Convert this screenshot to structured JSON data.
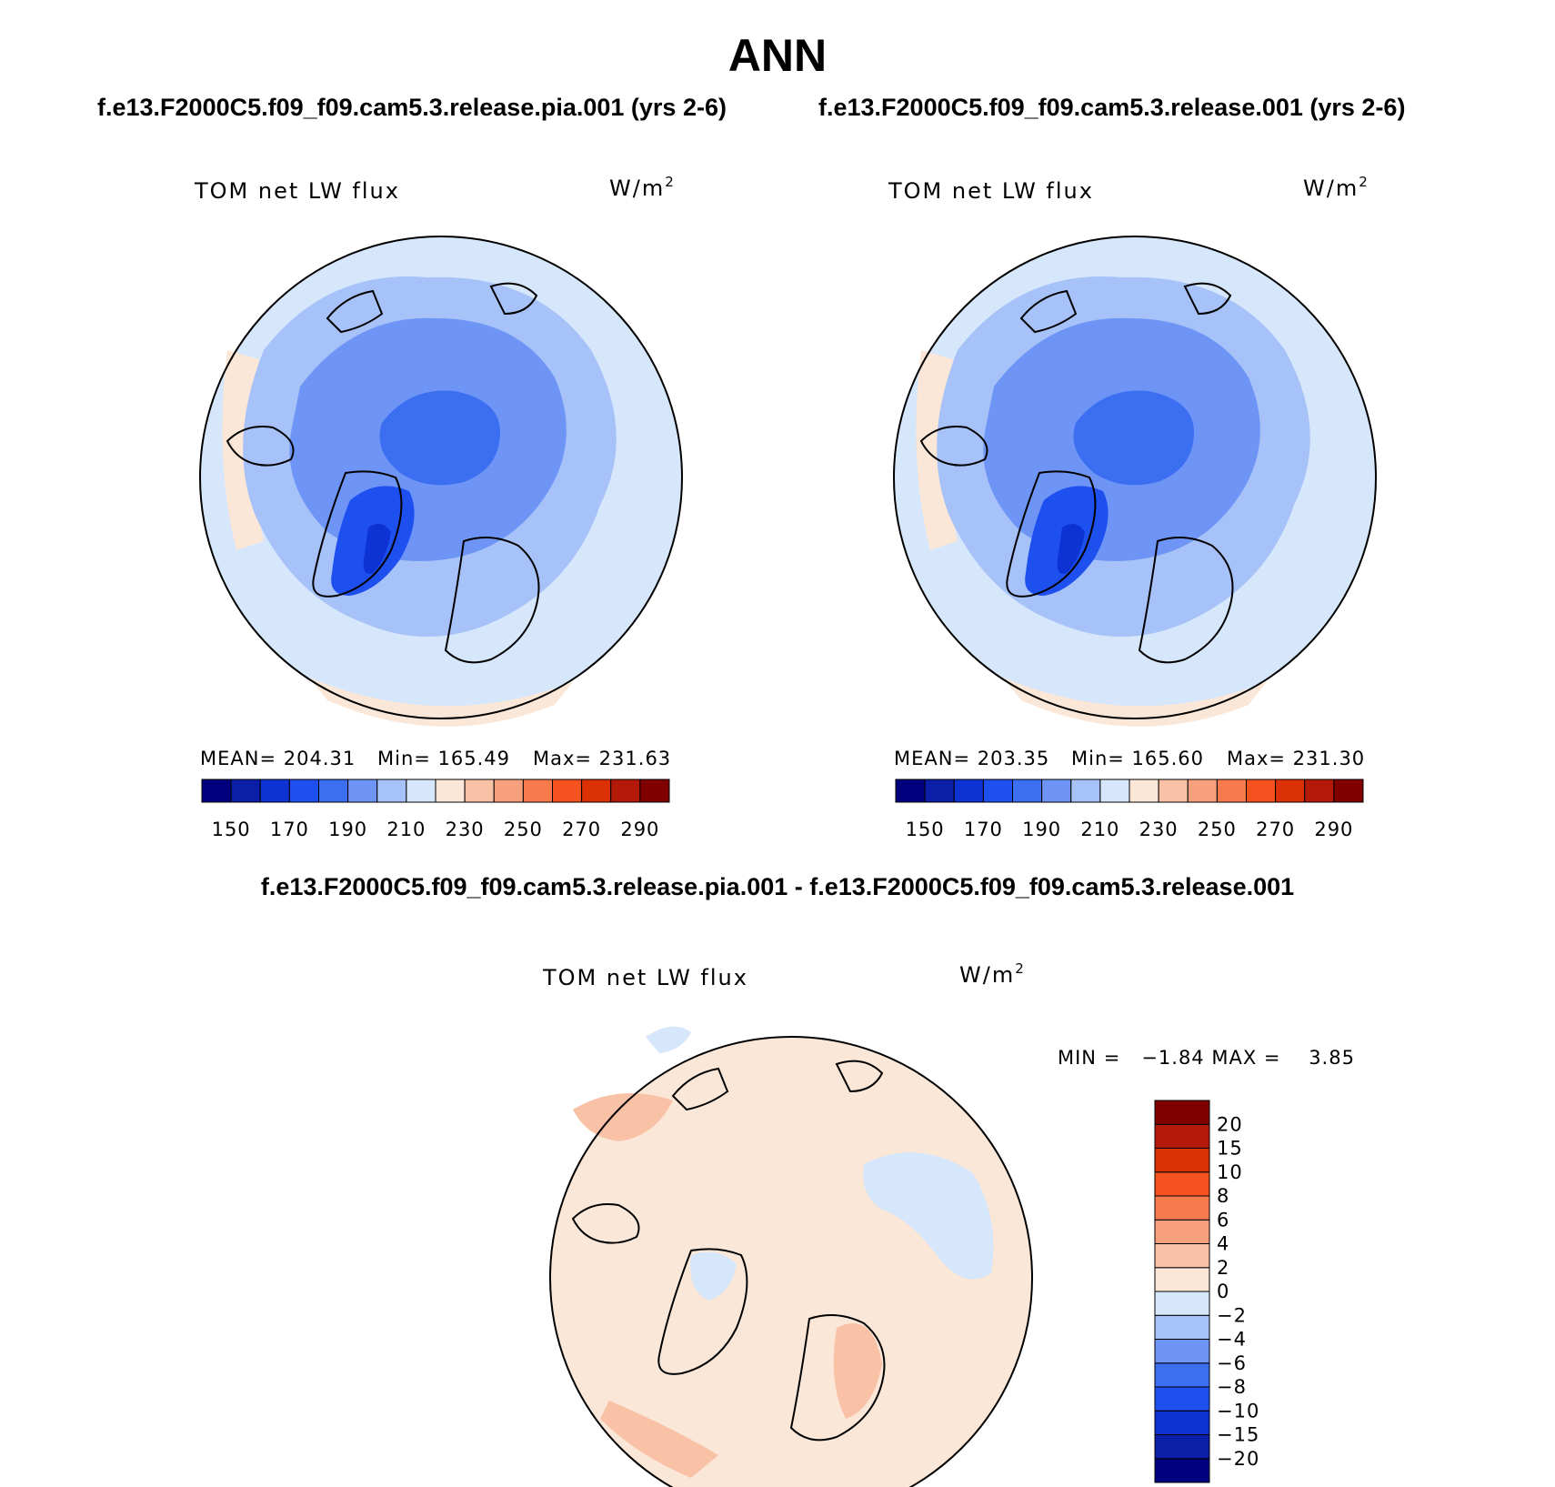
{
  "title": "ANN",
  "case1_title": "f.e13.F2000C5.f09_f09.cam5.3.release.pia.001 (yrs 2-6)",
  "case2_title": "f.e13.F2000C5.f09_f09.cam5.3.release.001 (yrs 2-6)",
  "diff_title": "f.e13.F2000C5.f09_f09.cam5.3.release.pia.001 - f.e13.F2000C5.f09_f09.cam5.3.release.001",
  "panel1": {
    "variable": "TOM net LW flux",
    "units_base": "W/m",
    "units_sup": "2",
    "mean_label": "MEAN= 204.31",
    "min_label": "Min= 165.49",
    "max_label": "Max= 231.63"
  },
  "panel2": {
    "variable": "TOM net LW flux",
    "units_base": "W/m",
    "units_sup": "2",
    "mean_label": "MEAN= 203.35",
    "min_label": "Min= 165.60",
    "max_label": "Max= 231.30"
  },
  "panel3": {
    "variable": "TOM net LW flux",
    "units_base": "W/m",
    "units_sup": "2",
    "minmax_label": "MIN =   −1.84 MAX =    3.85"
  },
  "abs_colorbar": {
    "colors": [
      "#00007f",
      "#0a1ea8",
      "#0d33d4",
      "#1e50f0",
      "#3c6ef2",
      "#6e95f5",
      "#a6c2f8",
      "#d6e6fb",
      "#fbe7d7",
      "#f9c2a7",
      "#f7a07d",
      "#f77a4c",
      "#f5521f",
      "#dc3005",
      "#b31a0a",
      "#800000"
    ],
    "tick_labels": [
      "150",
      "170",
      "190",
      "210",
      "230",
      "250",
      "270",
      "290"
    ]
  },
  "diff_colorbar": {
    "colors": [
      "#00007f",
      "#0a1ea8",
      "#0d33d4",
      "#1e50f0",
      "#3c6ef2",
      "#6e95f5",
      "#a6c2f8",
      "#d6e6fb",
      "#fbe7d7",
      "#f9c2a7",
      "#f7a07d",
      "#f77a4c",
      "#f5521f",
      "#dc3005",
      "#b31a0a",
      "#800000"
    ],
    "tick_labels": [
      "−20",
      "−15",
      "−10",
      "−8",
      "−6",
      "−4",
      "−2",
      "0",
      "2",
      "4",
      "6",
      "8",
      "10",
      "15",
      "20"
    ]
  }
}
